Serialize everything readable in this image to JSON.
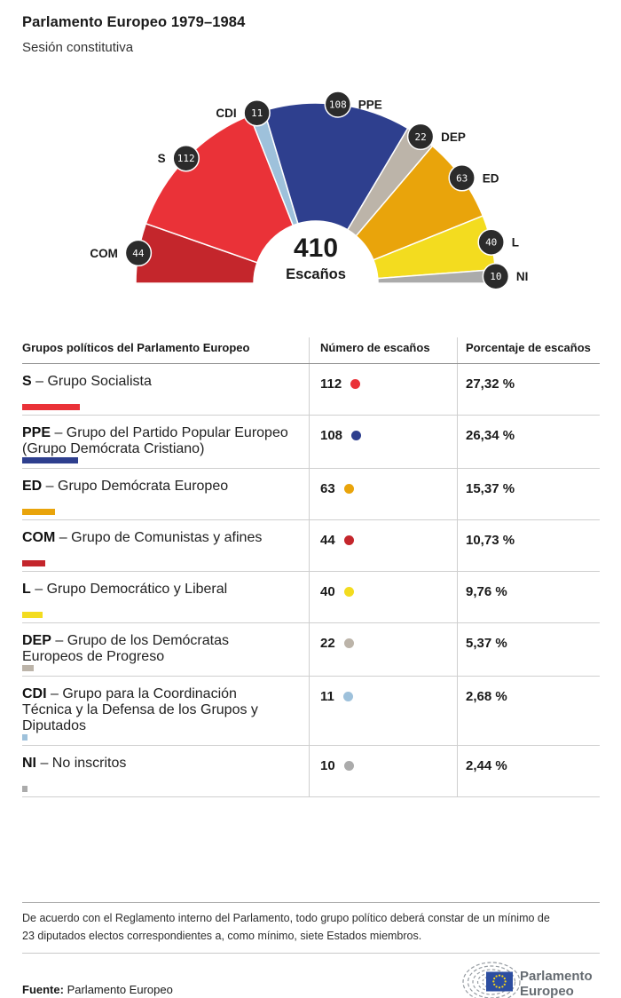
{
  "header": {
    "title": "Parlamento Europeo 1979–1984",
    "subtitle": "Sesión constitutiva"
  },
  "chart_data": {
    "type": "pie",
    "layout": "semicircle-hemicycle, donut, spans 180deg left to right, legend-free with callout badges",
    "title": "Parlamento Europeo 1979–1984 — Sesión constitutiva",
    "total_seats": 410,
    "center_label": {
      "value": "410",
      "caption": "Escaños"
    },
    "categories": [
      "COM",
      "S",
      "CDI",
      "PPE",
      "DEP",
      "ED",
      "L",
      "NI"
    ],
    "values": [
      44,
      112,
      11,
      108,
      22,
      63,
      40,
      10
    ],
    "colors": {
      "COM": "#c4262c",
      "S": "#ea3238",
      "CDI": "#9ec1db",
      "PPE": "#2e3f8e",
      "DEP": "#bcb4a9",
      "ED": "#e9a40b",
      "L": "#f3dc1f",
      "NI": "#ababab"
    },
    "badge_color": "#2b2b2b"
  },
  "table": {
    "headers": [
      "Grupos políticos del Parlamento Europeo",
      "Número de escaños",
      "Porcentaje de escaños"
    ],
    "groups": [
      {
        "abbr": "S",
        "name": "Grupo Socialista",
        "seats": 112,
        "pct": "27,32 %",
        "color": "#ea3238"
      },
      {
        "abbr": "PPE",
        "name": "Grupo del Partido Popular Europeo (Grupo Demócrata Cristiano)",
        "seats": 108,
        "pct": "26,34 %",
        "color": "#2e3f8e"
      },
      {
        "abbr": "ED",
        "name": "Grupo Demócrata Europeo",
        "seats": 63,
        "pct": "15,37 %",
        "color": "#e9a40b"
      },
      {
        "abbr": "COM",
        "name": "Grupo de Comunistas y afines",
        "seats": 44,
        "pct": "10,73 %",
        "color": "#c4262c"
      },
      {
        "abbr": "L",
        "name": "Grupo Democrático y Liberal",
        "seats": 40,
        "pct": "9,76 %",
        "color": "#f3dc1f"
      },
      {
        "abbr": "DEP",
        "name": "Grupo de los Demócratas Europeos de Progreso",
        "seats": 22,
        "pct": "5,37 %",
        "color": "#bcb4a9"
      },
      {
        "abbr": "CDI",
        "name": "Grupo para la Coordinación Técnica y la Defensa de los Grupos y Diputados",
        "seats": 11,
        "pct": "2,68 %",
        "color": "#9ec1db"
      },
      {
        "abbr": "NI",
        "name": "No inscritos",
        "seats": 10,
        "pct": "2,44 %",
        "color": "#ababab"
      }
    ]
  },
  "footnote": "De acuerdo con el Reglamento interno del Parlamento, todo grupo político deberá constar de un mínimo de 23 diputados electos correspondientes a, como mínimo, siete Estados miembros.",
  "source": {
    "label": "Fuente:",
    "value": "Parlamento Europeo"
  },
  "logo": {
    "line1": "Parlamento",
    "line2": "Europeo"
  }
}
